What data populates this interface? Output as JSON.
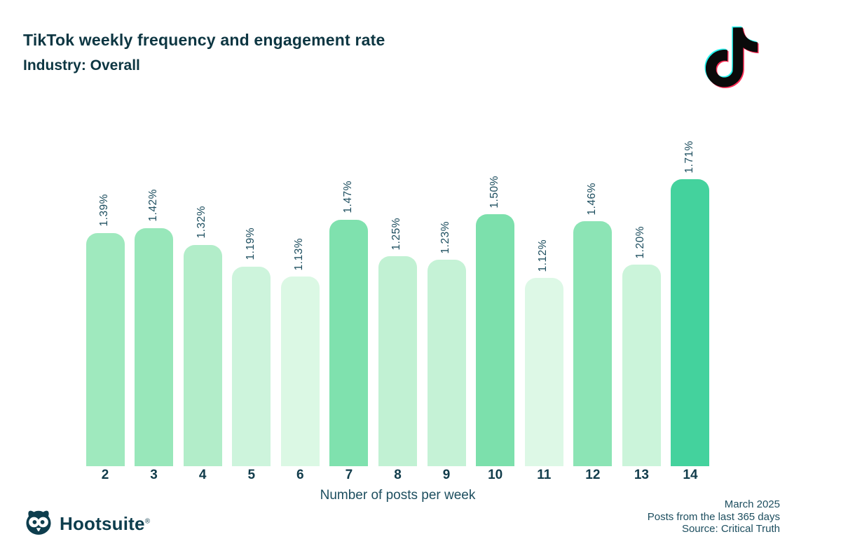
{
  "chart_data": {
    "type": "bar",
    "title": "TikTok weekly frequency and engagement rate",
    "subtitle": "Industry: Overall",
    "categories": [
      "2",
      "3",
      "4",
      "5",
      "6",
      "7",
      "8",
      "9",
      "10",
      "11",
      "12",
      "13",
      "14"
    ],
    "values": [
      1.39,
      1.42,
      1.32,
      1.19,
      1.13,
      1.47,
      1.25,
      1.23,
      1.5,
      1.12,
      1.46,
      1.2,
      1.71
    ],
    "labels": [
      "1.39%",
      "1.42%",
      "1.32%",
      "1.19%",
      "1.13%",
      "1.47%",
      "1.25%",
      "1.23%",
      "1.50%",
      "1.12%",
      "1.46%",
      "1.20%",
      "1.71%"
    ],
    "bar_colors": [
      "#9fe9be",
      "#98e7ba",
      "#b2edc9",
      "#cdf4dc",
      "#dbf8e4",
      "#7fe1ae",
      "#c1f1d3",
      "#c5f2d6",
      "#7ce0ac",
      "#ddf8e6",
      "#8ce4b5",
      "#cbf4da",
      "#44d29d"
    ],
    "xlabel": "Number of posts per week",
    "ylabel": "",
    "ylim": [
      0,
      1.8
    ],
    "grid": false,
    "legend": false
  },
  "icons": {
    "tiktok": "tiktok-note-icon",
    "hootsuite": "owl-icon"
  },
  "footer": {
    "brand": "Hootsuite",
    "registered_mark": "®",
    "notes": [
      "March 2025",
      "Posts from the last 365 days",
      "Source: Critical Truth"
    ]
  },
  "colors": {
    "ink": "#0d3642",
    "muted_ink": "#1d4e5f",
    "tiktok_cyan": "#25f4ee",
    "tiktok_pink": "#fe2c55",
    "tiktok_black": "#0a0a0a",
    "hootsuite_teal": "#0d3d4d",
    "bar_max": "#44d29d",
    "bar_min": "#ddf8e6"
  }
}
